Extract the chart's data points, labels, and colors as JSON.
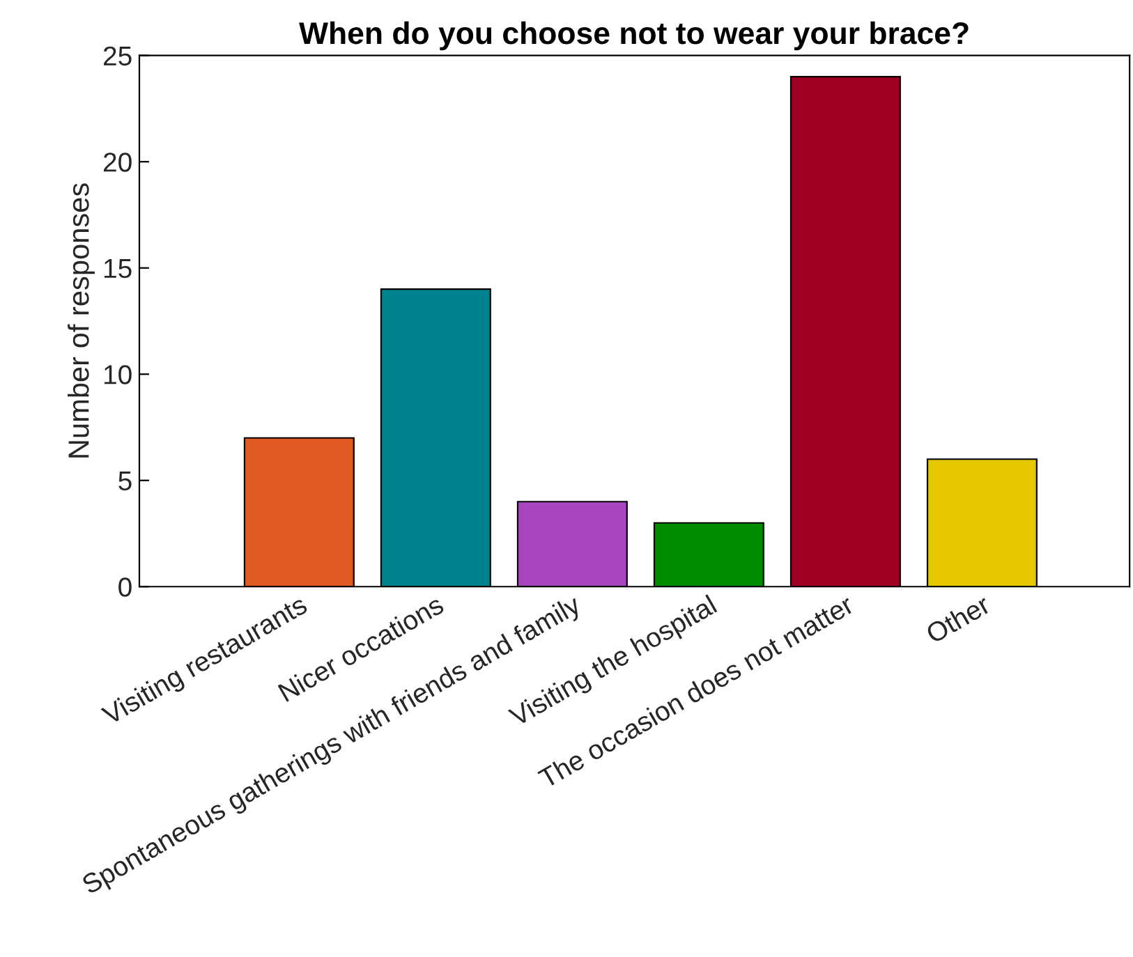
{
  "chart_data": {
    "type": "bar",
    "title": "When do you choose not to wear your brace?",
    "ylabel": "Number of responses",
    "categories": [
      "Visiting restaurants",
      "Nicer occations",
      "Spontaneous gatherings with friends and family",
      "Visiting the hospital",
      "The occasion does not matter",
      "Other"
    ],
    "values": [
      7,
      14,
      4,
      3,
      24,
      6
    ],
    "colors": [
      "#e05a24",
      "#00838f",
      "#a846c0",
      "#008c00",
      "#a10025",
      "#e5c800"
    ],
    "ylim": [
      0,
      25
    ],
    "yticks": [
      0,
      5,
      10,
      15,
      20,
      25
    ],
    "grid": false
  }
}
